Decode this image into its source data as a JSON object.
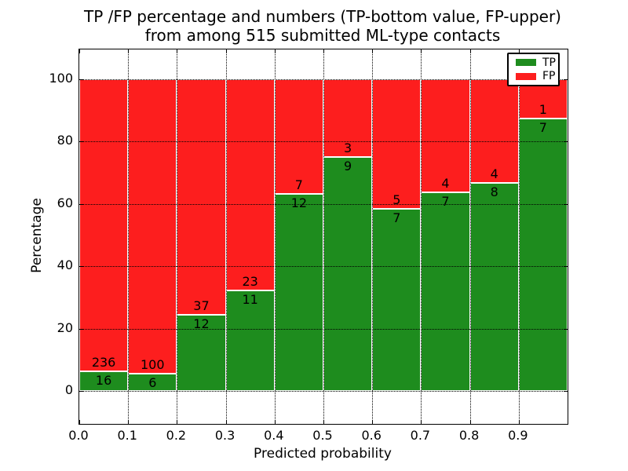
{
  "chart_data": {
    "type": "bar",
    "stacked": true,
    "title_line1": "TP /FP percentage and numbers (TP-bottom value, FP-upper)",
    "title_line2": "from among 515 submitted ML-type contacts",
    "xlabel": "Predicted probability",
    "ylabel": "Percentage",
    "bin_width": 0.1,
    "bin_starts": [
      0.0,
      0.1,
      0.2,
      0.3,
      0.4,
      0.5,
      0.6,
      0.7,
      0.8,
      0.9
    ],
    "series": [
      {
        "name": "TP",
        "color": "#1e8c1e",
        "values": [
          16,
          6,
          12,
          11,
          12,
          9,
          7,
          7,
          8,
          7
        ]
      },
      {
        "name": "FP",
        "color": "#fd1e1e",
        "values": [
          236,
          100,
          37,
          23,
          7,
          3,
          5,
          4,
          4,
          1
        ]
      }
    ],
    "tp_percent": [
      6.3,
      5.7,
      24.5,
      32.4,
      63.2,
      75.0,
      58.3,
      63.6,
      66.7,
      87.5
    ],
    "labels_note": "each bar normalized to 100%; count labels drawn at TP/FP boundary, TP below, FP above",
    "xticks": [
      "0.0",
      "0.1",
      "0.2",
      "0.3",
      "0.4",
      "0.5",
      "0.6",
      "0.7",
      "0.8",
      "0.9"
    ],
    "yticks": [
      "0",
      "20",
      "40",
      "60",
      "80",
      "100"
    ],
    "xlim": [
      0.0,
      1.0
    ],
    "ylim": [
      -11,
      110
    ],
    "grid": {
      "style": "dotted",
      "color": "#000000"
    },
    "legend": {
      "position": "upper-right",
      "entries": [
        {
          "label": "TP",
          "color": "#1e8c1e"
        },
        {
          "label": "FP",
          "color": "#fd1e1e"
        }
      ]
    }
  }
}
